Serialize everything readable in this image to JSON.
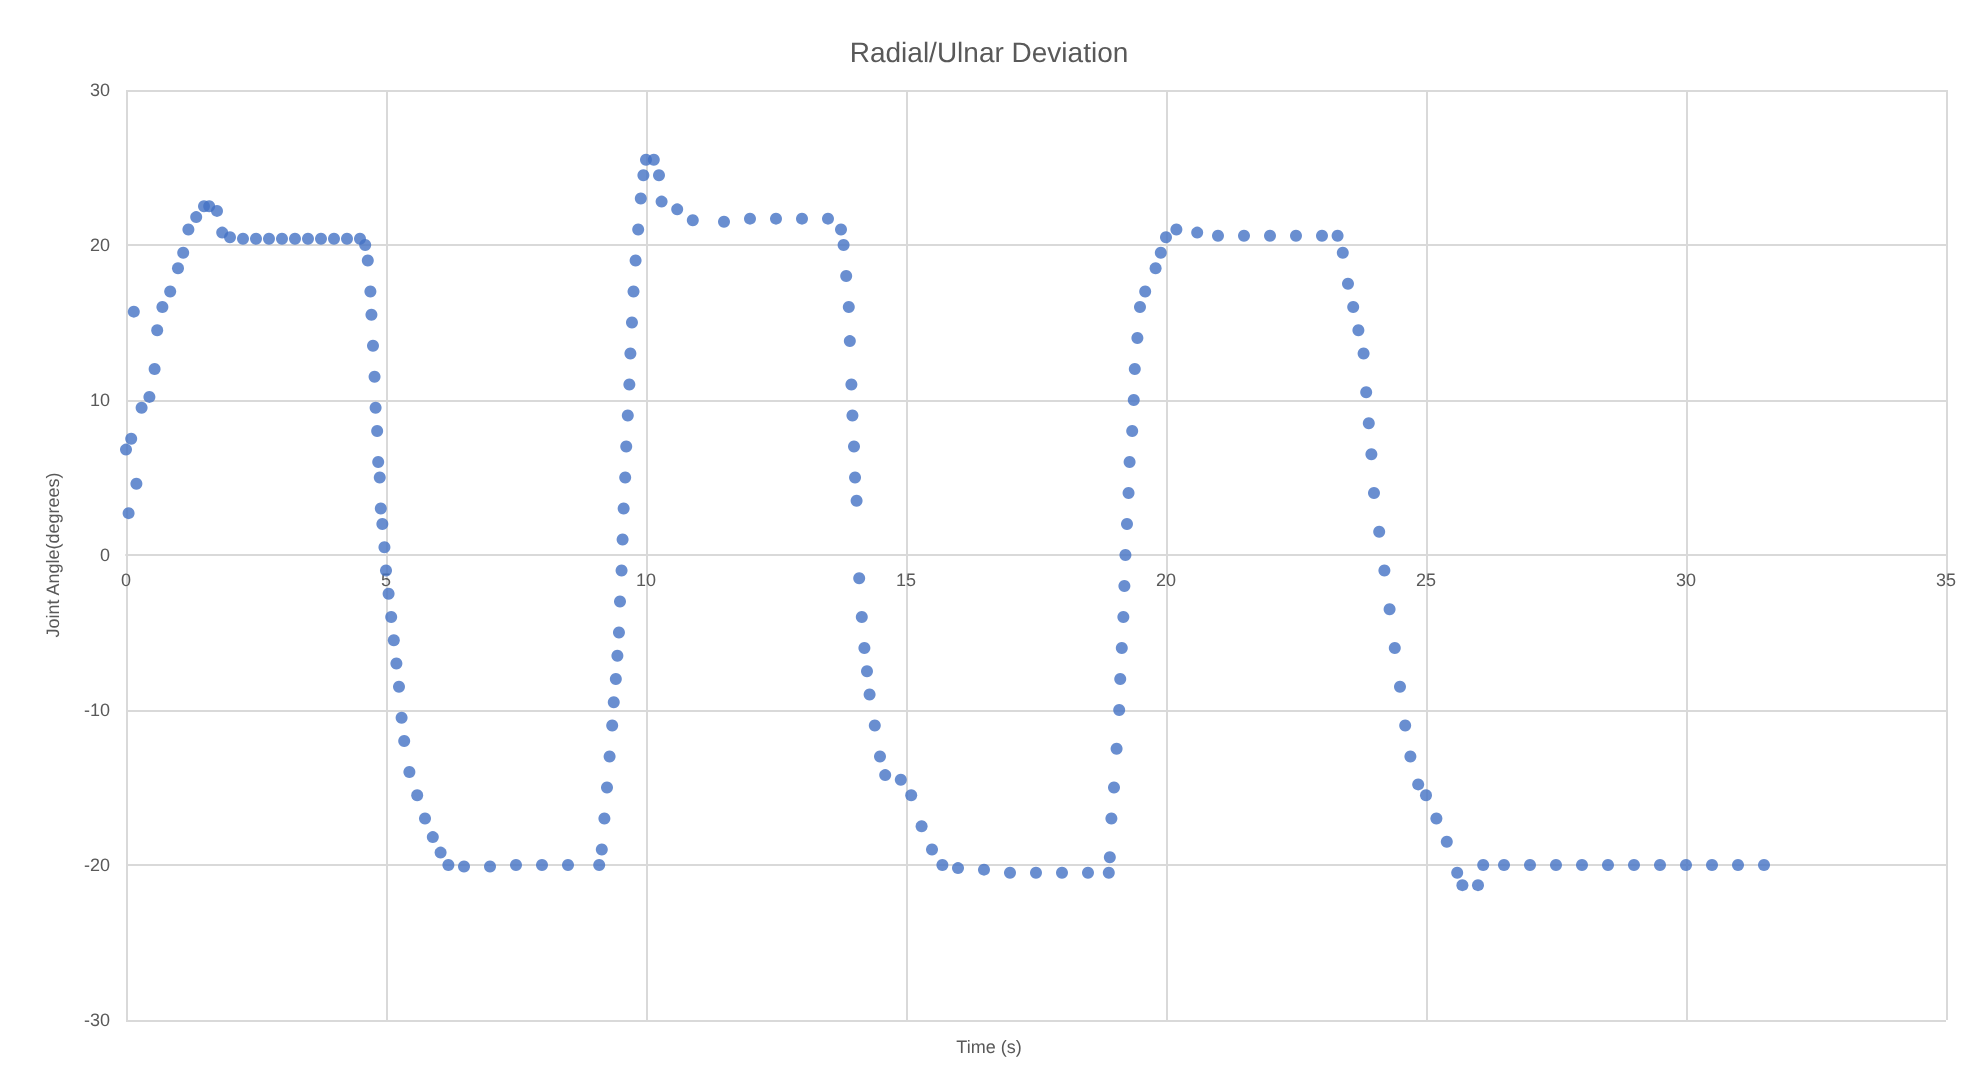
{
  "chart_data": {
    "type": "scatter",
    "title": "Radial/Ulnar Deviation",
    "xlabel": "Time (s)",
    "ylabel": "Joint Angle(degrees)",
    "xlim": [
      0,
      35
    ],
    "xticks": [
      0,
      5,
      10,
      15,
      20,
      25,
      30,
      35
    ],
    "ylim": [
      -30,
      30
    ],
    "yticks": [
      -30,
      -20,
      -10,
      0,
      10,
      20,
      30
    ],
    "grid": true,
    "marker": "circle",
    "series": [
      {
        "color": "#4472c4",
        "x": [
          0,
          0.05,
          0.1,
          0.15,
          0.2,
          0.3,
          0.45,
          0.55,
          0.6,
          0.7,
          0.85,
          1,
          1.1,
          1.2,
          1.35,
          1.5,
          1.6,
          1.75,
          1.85,
          2,
          2.25,
          2.5,
          2.75,
          3,
          3.25,
          3.5,
          3.75,
          4,
          4.25,
          4.5,
          4.6,
          4.65,
          4.7,
          4.72,
          4.75,
          4.78,
          4.8,
          4.83,
          4.85,
          4.88,
          4.9,
          4.93,
          4.97,
          5,
          5.05,
          5.1,
          5.15,
          5.2,
          5.25,
          5.3,
          5.35,
          5.45,
          5.6,
          5.75,
          5.9,
          6.05,
          6.2,
          6.5,
          7,
          7.5,
          8,
          8.5,
          9.1,
          9.15,
          9.2,
          9.25,
          9.3,
          9.35,
          9.38,
          9.42,
          9.45,
          9.48,
          9.5,
          9.53,
          9.55,
          9.57,
          9.6,
          9.62,
          9.65,
          9.68,
          9.7,
          9.73,
          9.76,
          9.8,
          9.85,
          9.9,
          9.95,
          10,
          10.15,
          10.25,
          10.3,
          10.6,
          10.9,
          11.5,
          12,
          12.5,
          13,
          13.5,
          13.75,
          13.8,
          13.85,
          13.9,
          13.92,
          13.95,
          13.97,
          14,
          14.02,
          14.05,
          14.1,
          14.15,
          14.2,
          14.25,
          14.3,
          14.4,
          14.5,
          14.6,
          14.9,
          15.1,
          15.3,
          15.5,
          15.7,
          16,
          16.5,
          17,
          17.5,
          18,
          18.5,
          18.9,
          18.92,
          18.95,
          19,
          19.05,
          19.1,
          19.12,
          19.15,
          19.18,
          19.2,
          19.22,
          19.25,
          19.28,
          19.3,
          19.35,
          19.38,
          19.4,
          19.45,
          19.5,
          19.6,
          19.8,
          19.9,
          20,
          20.2,
          20.6,
          21,
          21.5,
          22,
          22.5,
          23,
          23.3,
          23.4,
          23.5,
          23.6,
          23.7,
          23.8,
          23.85,
          23.9,
          23.95,
          24,
          24.1,
          24.2,
          24.3,
          24.4,
          24.5,
          24.6,
          24.7,
          24.85,
          25,
          25.2,
          25.4,
          25.6,
          25.7,
          26,
          26.1,
          26.5,
          27,
          27.5,
          28,
          28.5,
          29,
          29.5,
          30,
          30.5,
          31,
          31.5
        ],
        "values": [
          6.8,
          2.7,
          7.5,
          15.7,
          4.6,
          9.5,
          10.2,
          12,
          14.5,
          16,
          17,
          18.5,
          19.5,
          21,
          21.8,
          22.5,
          22.5,
          22.2,
          20.8,
          20.5,
          20.4,
          20.4,
          20.4,
          20.4,
          20.4,
          20.4,
          20.4,
          20.4,
          20.4,
          20.4,
          20,
          19,
          17,
          15.5,
          13.5,
          11.5,
          9.5,
          8,
          6,
          5,
          3,
          2,
          0.5,
          -1,
          -2.5,
          -4,
          -5.5,
          -7,
          -8.5,
          -10.5,
          -12,
          -14,
          -15.5,
          -17,
          -18.2,
          -19.2,
          -20,
          -20.1,
          -20.1,
          -20,
          -20,
          -20,
          -20,
          -19,
          -17,
          -15,
          -13,
          -11,
          -9.5,
          -8,
          -6.5,
          -5,
          -3,
          -1,
          1,
          3,
          5,
          7,
          9,
          11,
          13,
          15,
          17,
          19,
          21,
          23,
          24.5,
          25.5,
          25.5,
          24.5,
          22.8,
          22.3,
          21.6,
          21.5,
          21.7,
          21.7,
          21.7,
          21.7,
          21,
          20,
          18,
          16,
          13.8,
          11,
          9,
          7,
          5,
          3.5,
          -1.5,
          -4,
          -6,
          -7.5,
          -9,
          -11,
          -13,
          -14.2,
          -14.5,
          -15.5,
          -17.5,
          -19,
          -20,
          -20.2,
          -20.3,
          -20.5,
          -20.5,
          -20.5,
          -20.5,
          -20.5,
          -19.5,
          -17,
          -15,
          -12.5,
          -10,
          -8,
          -6,
          -4,
          -2,
          0,
          2,
          4,
          6,
          8,
          10,
          12,
          14,
          16,
          17,
          18.5,
          19.5,
          20.5,
          21,
          20.8,
          20.6,
          20.6,
          20.6,
          20.6,
          20.6,
          20.6,
          19.5,
          17.5,
          16,
          14.5,
          13,
          10.5,
          8.5,
          6.5,
          4,
          1.5,
          -1,
          -3.5,
          -6,
          -8.5,
          -11,
          -13,
          -14.8,
          -15.5,
          -17,
          -18.5,
          -20.5,
          -21.3,
          -21.3,
          -20,
          -20,
          -20,
          -20,
          -20,
          -20,
          -20,
          -20,
          -20,
          -20,
          -20,
          -20
        ]
      }
    ]
  }
}
